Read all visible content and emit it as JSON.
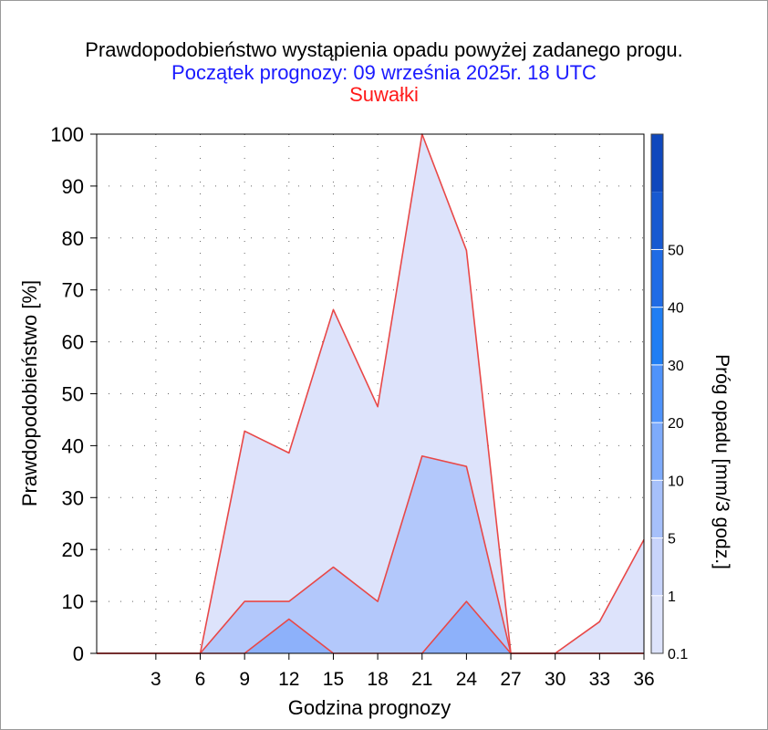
{
  "chart_data": {
    "type": "area",
    "title": "Prawdopodobieństwo wystąpienia opadu powyżej zadanego progu.",
    "subtitle": "Początek prognozy: 09 września 2025r. 18 UTC",
    "location": "Suwałki",
    "xlabel": "Godzina prognozy",
    "ylabel": "Prawdopodobieństwo [%]",
    "colorbar_label": "Próg opadu [mm/3 godz.]",
    "xlim": [
      -1,
      36
    ],
    "ylim": [
      0,
      100
    ],
    "x_ticks": [
      3,
      6,
      9,
      12,
      15,
      18,
      21,
      24,
      27,
      30,
      33,
      36
    ],
    "y_ticks": [
      0,
      10,
      20,
      30,
      40,
      50,
      60,
      70,
      80,
      90,
      100
    ],
    "x": [
      -1,
      3,
      6,
      9,
      12,
      15,
      18,
      21,
      24,
      27,
      30,
      33,
      36
    ],
    "grid": true,
    "series": [
      {
        "name": "0.1",
        "color": "#dde3fb",
        "values": [
          0,
          0,
          0,
          42.8,
          38.6,
          66.2,
          47.5,
          100,
          77.6,
          0,
          0,
          6.1,
          21.9
        ]
      },
      {
        "name": "1",
        "color": "#b3c8fb",
        "values": [
          0,
          0,
          0,
          10.0,
          10.0,
          16.6,
          10.0,
          38.0,
          36.0,
          0,
          0,
          0,
          0
        ]
      },
      {
        "name": "5",
        "color": "#8db1fa",
        "values": [
          0,
          0,
          0,
          0,
          6.6,
          0,
          0,
          0,
          10.0,
          0,
          0,
          0,
          0
        ]
      }
    ],
    "colorbar": {
      "tick_labels": [
        "0.1",
        "1",
        "5",
        "10",
        "20",
        "30",
        "40",
        "50"
      ],
      "colors": [
        "#dde3fb",
        "#c8d4fb",
        "#a6c0fa",
        "#7eabfb",
        "#4f93fa",
        "#1f7ef3",
        "#1f6be5",
        "#1759d1",
        "#0f48bd"
      ]
    },
    "line_color": "#e84848"
  }
}
